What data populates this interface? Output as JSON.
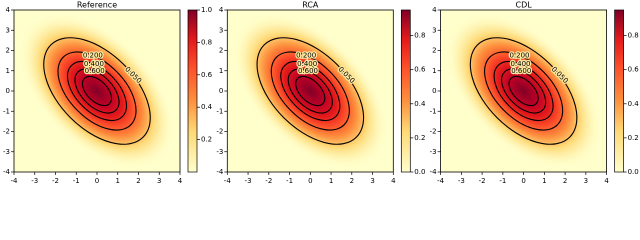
{
  "chart_data": [
    {
      "type": "contour",
      "title": "Reference",
      "xlim": [
        -4,
        4
      ],
      "ylim": [
        -4,
        4
      ],
      "xticks": [
        -4,
        -3,
        -2,
        -1,
        0,
        1,
        2,
        3,
        4
      ],
      "yticks": [
        -4,
        -3,
        -2,
        -1,
        0,
        1,
        2,
        3,
        4
      ],
      "levels": [
        {
          "value": 0.05,
          "label": "0.050"
        },
        {
          "value": 0.2,
          "label": "0.200"
        },
        {
          "value": 0.4,
          "label": "0.400"
        },
        {
          "value": 0.6,
          "label": "0.600"
        },
        0.8
      ],
      "clim": [
        0,
        1
      ],
      "cticks": [
        0.2,
        0.4,
        0.6,
        0.8,
        {
          "value": 1,
          "label": "1.0"
        }
      ]
    },
    {
      "type": "contour",
      "title": "RCA",
      "xlim": [
        -4,
        4
      ],
      "ylim": [
        -4,
        4
      ],
      "xticks": [
        -4,
        -3,
        -2,
        -1,
        0,
        1,
        2,
        3,
        4
      ],
      "yticks": [
        -4,
        -3,
        -2,
        -1,
        0,
        1,
        2,
        3,
        4
      ],
      "levels": [
        {
          "value": 0.05,
          "label": "0.050"
        },
        {
          "value": 0.2,
          "label": "0.200"
        },
        {
          "value": 0.4,
          "label": "0.400"
        },
        {
          "value": 0.6,
          "label": "0.600"
        },
        0.8
      ],
      "clim": [
        0,
        0.95
      ],
      "cticks": [
        {
          "value": 0,
          "label": "0.0"
        },
        0.2,
        0.4,
        0.6,
        0.8
      ]
    },
    {
      "type": "contour",
      "title": "CDL",
      "xlim": [
        -4,
        4
      ],
      "ylim": [
        -4,
        4
      ],
      "xticks": [
        -4,
        -3,
        -2,
        -1,
        0,
        1,
        2,
        3,
        4
      ],
      "yticks": [
        -4,
        -3,
        -2,
        -1,
        0,
        1,
        2,
        3,
        4
      ],
      "levels": [
        {
          "value": 0.05,
          "label": "0.050"
        },
        {
          "value": 0.2,
          "label": "0.200"
        },
        {
          "value": 0.4,
          "label": "0.400"
        },
        {
          "value": 0.6,
          "label": "0.600"
        },
        0.8
      ],
      "clim": [
        0,
        0.95
      ],
      "cticks": [
        {
          "value": 0,
          "label": "0.0"
        },
        0.2,
        0.4,
        0.6,
        0.8
      ]
    }
  ]
}
